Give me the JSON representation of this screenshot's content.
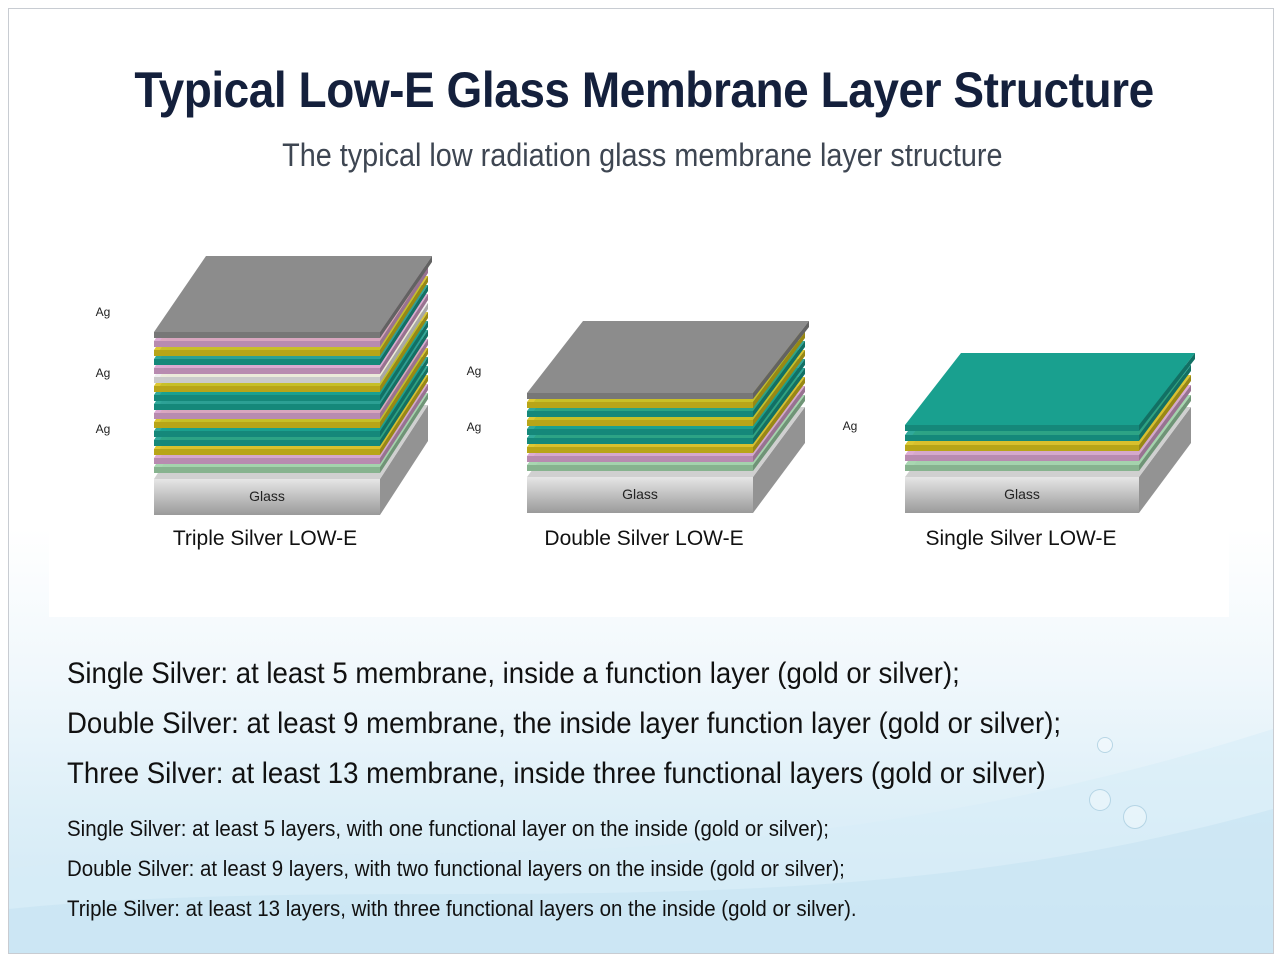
{
  "title": "Typical Low-E Glass Membrane Layer Structure",
  "subtitle": "The typical low radiation glass membrane layer structure",
  "colors": {
    "gray_top": "#8c8c8c",
    "pink": "#d9a3cf",
    "yellow": "#d9c21c",
    "teal": "#19a08f",
    "white": "#eeeeee",
    "green": "#9fd3a8",
    "glass": "#bdbdbd"
  },
  "diagrams": [
    {
      "name": "triple-silver",
      "caption": "Triple Silver LOW-E",
      "glass_label": "Glass",
      "ag_labels": [
        "Ag",
        "Ag",
        "Ag"
      ],
      "layers": [
        "green",
        "pink",
        "yellow",
        "teal",
        "teal",
        "yellow",
        "pink",
        "teal",
        "teal",
        "yellow",
        "white",
        "pink",
        "teal",
        "yellow",
        "pink",
        "gray_top"
      ]
    },
    {
      "name": "double-silver",
      "caption": "Double Silver LOW-E",
      "glass_label": "Glass",
      "ag_labels": [
        "Ag",
        "Ag"
      ],
      "layers": [
        "green",
        "pink",
        "yellow",
        "teal",
        "teal",
        "yellow",
        "teal",
        "yellow",
        "gray_top"
      ]
    },
    {
      "name": "single-silver",
      "caption": "Single Silver LOW-E",
      "glass_label": "Glass",
      "ag_labels": [
        "Ag"
      ],
      "layers": [
        "green",
        "pink",
        "yellow",
        "teal",
        "teal"
      ]
    }
  ],
  "descriptions": [
    "Single Silver:  at least 5 membrane, inside a function layer (gold or silver);",
    "Double Silver:  at least 9 membrane, the inside layer function layer (gold or silver);",
    "Three Silver:  at least 13 membrane, inside three functional layers (gold or silver)"
  ],
  "notes": [
    "Single Silver: at least 5 layers, with one functional layer on the inside (gold or silver);",
    "Double Silver: at least 9 layers, with two functional layers on the inside (gold or silver);",
    "Triple Silver: at least 13 layers, with three functional layers on the inside (gold or silver)."
  ]
}
